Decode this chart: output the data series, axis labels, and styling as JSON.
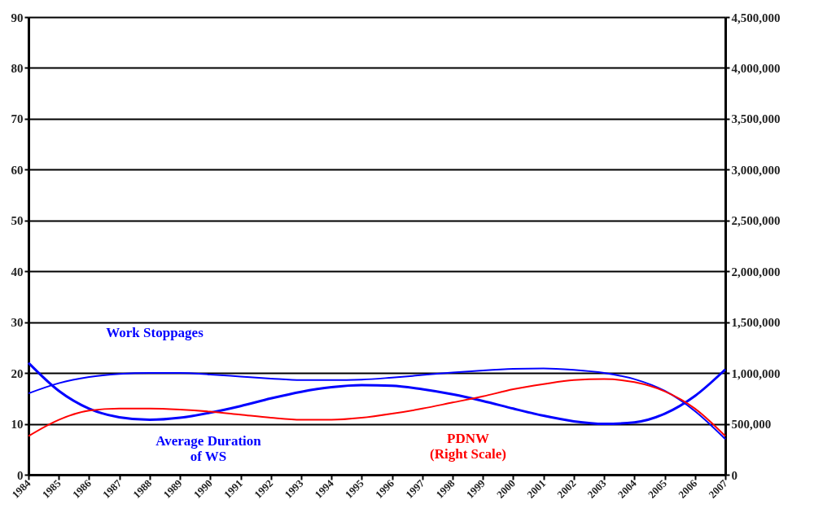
{
  "chart_data": {
    "type": "line",
    "categories": [
      "1984",
      "1985",
      "1986",
      "1987",
      "1988",
      "1989",
      "1990",
      "1991",
      "1992",
      "1993",
      "1994",
      "1995",
      "1996",
      "1997",
      "1998",
      "1999",
      "2000",
      "2001",
      "2002",
      "2003",
      "2004",
      "2005",
      "2006",
      "2007"
    ],
    "series": [
      {
        "name": "Work Stoppages",
        "color": "#0000ff",
        "values": [
          16,
          18,
          19.2,
          19.8,
          20,
          20,
          19.7,
          19.3,
          18.9,
          18.6,
          18.6,
          18.7,
          19.1,
          19.6,
          20.1,
          20.5,
          20.8,
          20.9,
          20.6,
          20,
          18.8,
          16.5,
          12.5,
          7
        ]
      },
      {
        "name": "Average Duration\nof WS",
        "color": "#0000ff",
        "values": [
          22,
          16.5,
          13,
          11.3,
          10.8,
          11.2,
          12.2,
          13.5,
          15,
          16.3,
          17.2,
          17.6,
          17.5,
          16.8,
          15.8,
          14.5,
          13,
          11.6,
          10.5,
          10,
          10.3,
          12,
          15.5,
          20.7
        ]
      },
      {
        "name": "PDNW\n(Right Scale)",
        "color": "#ff0000",
        "axis": "y2",
        "values": [
          380000,
          540000,
          630000,
          650000,
          650000,
          640000,
          620000,
          590000,
          560000,
          540000,
          540000,
          560000,
          600000,
          650000,
          710000,
          770000,
          840000,
          890000,
          930000,
          940000,
          910000,
          820000,
          650000,
          380000
        ]
      }
    ],
    "ylim": [
      0,
      90
    ],
    "yticks": [
      0,
      10,
      20,
      30,
      40,
      50,
      60,
      70,
      80,
      90
    ],
    "y2lim": [
      0,
      4500000
    ],
    "y2ticks": [
      0,
      {
        "value": 500000,
        "label": "500,000"
      },
      {
        "value": 1000000,
        "label": "1,000,000"
      },
      {
        "value": 1500000,
        "label": "1,500,000"
      },
      {
        "value": 2000000,
        "label": "2,000,000"
      },
      {
        "value": 2500000,
        "label": "2,500,000"
      },
      {
        "value": 3000000,
        "label": "3,000,000"
      },
      {
        "value": 3500000,
        "label": "3,500,000"
      },
      {
        "value": 4000000,
        "label": "4,000,000"
      },
      {
        "value": 4500000,
        "label": "4,500,000"
      }
    ],
    "grid": "y"
  }
}
